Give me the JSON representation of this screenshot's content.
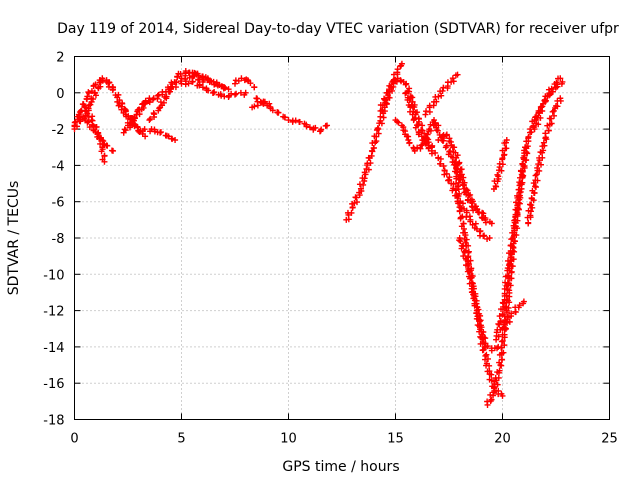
{
  "chart_data": {
    "type": "scatter",
    "title": "Day 119 of 2014, Sidereal Day-to-day VTEC variation (SDTVAR) for receiver ufpr",
    "xlabel": "GPS time / hours",
    "ylabel": "SDTVAR / TECUs",
    "xlim": [
      0,
      25
    ],
    "ylim": [
      -18,
      2
    ],
    "xticks": [
      0,
      5,
      10,
      15,
      20,
      25
    ],
    "yticks": [
      2,
      0,
      -2,
      -4,
      -6,
      -8,
      -10,
      -12,
      -14,
      -16,
      -18
    ],
    "grid": true,
    "marker": "+",
    "color": "#ff0000",
    "series": [
      {
        "x": [
          0.0,
          0.3,
          0.6,
          0.9,
          1.2,
          1.5,
          1.8
        ],
        "y": [
          -1.8,
          -1.0,
          -0.2,
          0.4,
          0.7,
          0.6,
          0.3
        ]
      },
      {
        "x": [
          0.0,
          0.4,
          0.8,
          1.1,
          1.3
        ],
        "y": [
          -2.0,
          -1.3,
          -0.5,
          0.3,
          0.8
        ]
      },
      {
        "x": [
          0.2,
          0.5,
          0.9,
          1.2,
          1.5,
          1.8
        ],
        "y": [
          -1.2,
          -1.5,
          -2.0,
          -2.5,
          -2.9,
          -3.2
        ]
      },
      {
        "x": [
          0.5,
          0.8,
          1.1,
          1.3,
          1.4
        ],
        "y": [
          -0.8,
          -1.5,
          -2.2,
          -3.0,
          -3.8
        ]
      },
      {
        "x": [
          1.5,
          1.8,
          2.1,
          2.4,
          2.7,
          3.0,
          3.3
        ],
        "y": [
          0.7,
          0.2,
          -0.4,
          -1.0,
          -1.6,
          -2.1,
          -2.4
        ]
      },
      {
        "x": [
          2.0,
          2.4,
          2.8,
          3.2,
          3.6,
          4.0,
          4.4,
          4.7
        ],
        "y": [
          -0.5,
          -1.2,
          -1.8,
          -2.1,
          -2.0,
          -2.2,
          -2.4,
          -2.6
        ]
      },
      {
        "x": [
          2.3,
          2.6,
          2.9,
          3.2,
          3.5
        ],
        "y": [
          -2.2,
          -1.8,
          -1.2,
          -0.6,
          -0.3
        ]
      },
      {
        "x": [
          2.5,
          2.9,
          3.3,
          3.7,
          4.1,
          4.5
        ],
        "y": [
          -1.8,
          -1.2,
          -0.6,
          -0.3,
          -0.1,
          0.3
        ]
      },
      {
        "x": [
          3.5,
          4.0,
          4.5,
          5.0,
          5.5,
          6.0
        ],
        "y": [
          -1.5,
          -0.8,
          0.2,
          0.8,
          0.9,
          0.6
        ]
      },
      {
        "x": [
          4.4,
          4.8,
          5.2,
          5.6,
          6.0,
          6.5,
          7.0
        ],
        "y": [
          0.2,
          0.9,
          1.2,
          1.1,
          0.9,
          0.6,
          0.3
        ]
      },
      {
        "x": [
          5.0,
          5.5,
          6.0,
          6.5,
          7.0,
          7.5,
          8.0
        ],
        "y": [
          0.5,
          0.6,
          0.3,
          0.0,
          -0.2,
          -0.1,
          0.0
        ]
      },
      {
        "x": [
          5.2,
          5.7,
          6.2,
          6.7,
          7.2
        ],
        "y": [
          1.1,
          1.0,
          0.7,
          0.4,
          0.2
        ]
      },
      {
        "x": [
          7.5,
          7.8,
          8.1,
          8.4
        ],
        "y": [
          0.5,
          0.8,
          0.7,
          0.3
        ]
      },
      {
        "x": [
          8.5,
          9.0,
          9.5,
          10.0,
          10.5,
          11.0,
          11.5,
          11.8
        ],
        "y": [
          -0.3,
          -0.7,
          -1.1,
          -1.5,
          -1.6,
          -1.9,
          -2.1,
          -1.8
        ]
      },
      {
        "x": [
          8.3,
          8.7,
          9.1
        ],
        "y": [
          -0.8,
          -0.5,
          -0.6
        ]
      },
      {
        "x": [
          12.7,
          13.0,
          13.3,
          13.6,
          13.9,
          14.2,
          14.5,
          14.8,
          15.1,
          15.3
        ],
        "y": [
          -7.0,
          -6.3,
          -5.5,
          -4.5,
          -3.2,
          -2.0,
          -0.8,
          0.3,
          1.3,
          1.6
        ]
      },
      {
        "x": [
          14.3,
          14.7,
          15.1,
          15.5,
          15.8,
          16.1,
          16.4,
          16.7
        ],
        "y": [
          -1.0,
          0.2,
          0.8,
          0.5,
          -0.5,
          -1.6,
          -2.5,
          -3.0
        ]
      },
      {
        "x": [
          15.0,
          15.3,
          15.6,
          15.9,
          16.2,
          16.5,
          16.8,
          17.0
        ],
        "y": [
          -1.5,
          -1.8,
          -2.6,
          -3.2,
          -2.9,
          -2.3,
          -1.5,
          -1.8
        ]
      },
      {
        "x": [
          15.5,
          15.8,
          16.1,
          16.4,
          16.7,
          17.0,
          17.3,
          17.6,
          17.9,
          18.2,
          18.5,
          18.8,
          19.1,
          19.4
        ],
        "y": [
          0.0,
          -1.2,
          -2.2,
          -2.8,
          -3.2,
          -3.6,
          -4.3,
          -5.0,
          -5.8,
          -6.4,
          -7.0,
          -7.5,
          -7.9,
          -8.0
        ]
      },
      {
        "x": [
          16.4,
          16.8,
          17.2,
          17.6,
          17.9
        ],
        "y": [
          -1.2,
          -0.5,
          0.1,
          0.6,
          1.0
        ]
      },
      {
        "x": [
          16.8,
          17.2,
          17.6,
          18.0,
          18.4,
          18.8,
          19.2
        ],
        "y": [
          -1.8,
          -2.5,
          -3.5,
          -4.6,
          -5.6,
          -6.4,
          -6.9
        ]
      },
      {
        "x": [
          17.0,
          17.4,
          17.8,
          18.1,
          18.3,
          18.6,
          18.9,
          19.2,
          19.5
        ],
        "y": [
          -2.6,
          -2.3,
          -3.3,
          -4.5,
          -5.6,
          -6.3,
          -6.6,
          -7.0,
          -7.2
        ]
      },
      {
        "x": [
          17.8,
          18.0,
          18.2,
          18.4,
          18.6,
          18.8,
          19.0,
          19.2,
          19.4,
          19.6,
          19.8,
          20.0
        ],
        "y": [
          -3.8,
          -6.5,
          -7.5,
          -9.0,
          -10.5,
          -12.0,
          -13.5,
          -14.5,
          -15.5,
          -16.2,
          -16.6,
          -16.7
        ]
      },
      {
        "x": [
          18.0,
          18.3,
          18.6,
          18.9,
          19.2,
          19.5,
          19.8
        ],
        "y": [
          -8.0,
          -9.2,
          -10.8,
          -12.5,
          -13.8,
          -14.2,
          -14.0
        ]
      },
      {
        "x": [
          19.3,
          19.6,
          19.9,
          20.2,
          20.5,
          20.8,
          21.1
        ],
        "y": [
          -17.2,
          -16.5,
          -15.0,
          -12.0,
          -8.5,
          -5.5,
          -3.0
        ]
      },
      {
        "x": [
          19.7,
          19.9,
          20.1,
          20.3,
          20.6,
          20.9,
          21.2,
          21.5,
          21.8,
          22.1,
          22.5,
          22.8
        ],
        "y": [
          -13.6,
          -12.6,
          -11.4,
          -9.5,
          -7.0,
          -4.5,
          -2.5,
          -1.5,
          -0.8,
          -0.2,
          0.3,
          0.6
        ]
      },
      {
        "x": [
          19.6,
          19.8,
          20.0,
          20.2
        ],
        "y": [
          -5.3,
          -4.6,
          -3.6,
          -2.6
        ]
      },
      {
        "x": [
          20.0,
          20.4,
          20.8,
          21.0
        ],
        "y": [
          -13.0,
          -12.3,
          -11.7,
          -11.5
        ]
      },
      {
        "x": [
          21.2,
          21.6,
          22.0,
          22.4,
          22.7
        ],
        "y": [
          -7.2,
          -4.5,
          -2.5,
          -1.0,
          -0.3
        ]
      },
      {
        "x": [
          21.5,
          21.9,
          22.3,
          22.7
        ],
        "y": [
          -2.0,
          -0.6,
          0.2,
          0.8
        ]
      }
    ]
  }
}
